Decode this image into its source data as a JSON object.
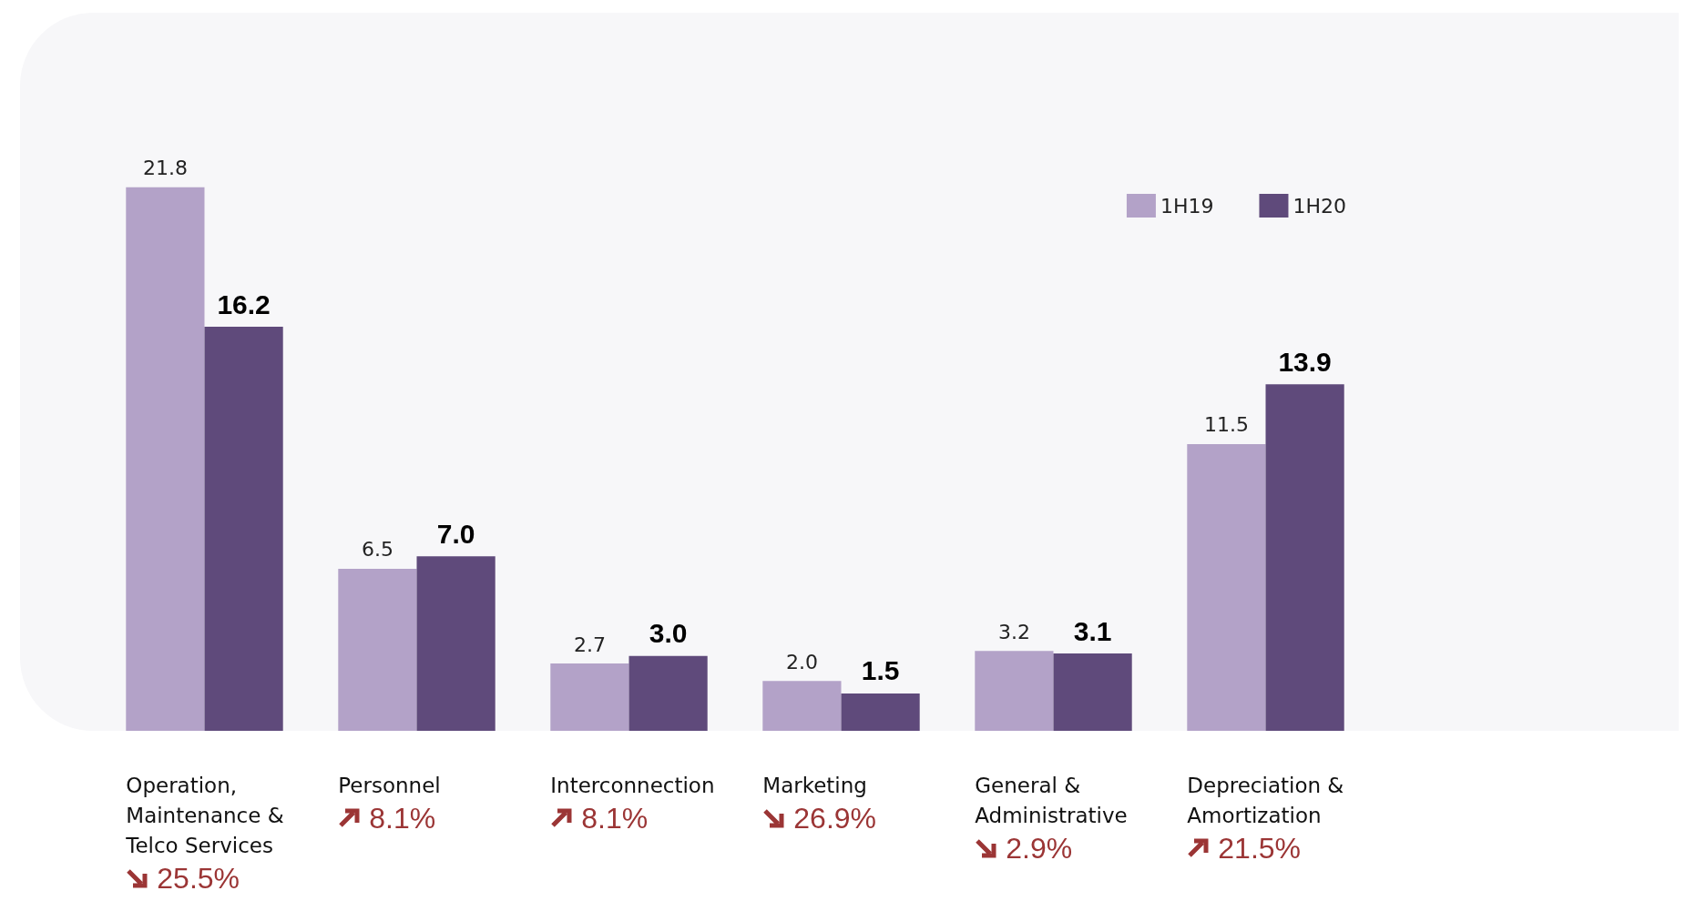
{
  "chart_data": {
    "type": "bar",
    "categories": [
      "Operation, Maintenance & Telco Services",
      "Personnel",
      "Interconnection",
      "Marketing",
      "General & Administrative",
      "Depreciation & Amortization"
    ],
    "series": [
      {
        "name": "1H19",
        "color": "#b3a2c8",
        "values": [
          21.8,
          6.5,
          2.7,
          2.0,
          3.2,
          11.5
        ],
        "value_labels": [
          "21.8",
          "6.5",
          "2.7",
          "2.0",
          "3.2",
          "11.5"
        ]
      },
      {
        "name": "1H20",
        "color": "#5f4a7b",
        "values": [
          16.2,
          7.0,
          3.0,
          1.5,
          3.1,
          13.9
        ],
        "value_labels": [
          "16.2",
          "7.0",
          "3.0",
          "1.5",
          "3.1",
          "13.9"
        ]
      }
    ],
    "legend": "top right",
    "annotations": [
      "25.5%",
      "8.1%",
      "8.1%",
      "26.9%",
      "2.9%",
      "21.5%"
    ]
  }
}
